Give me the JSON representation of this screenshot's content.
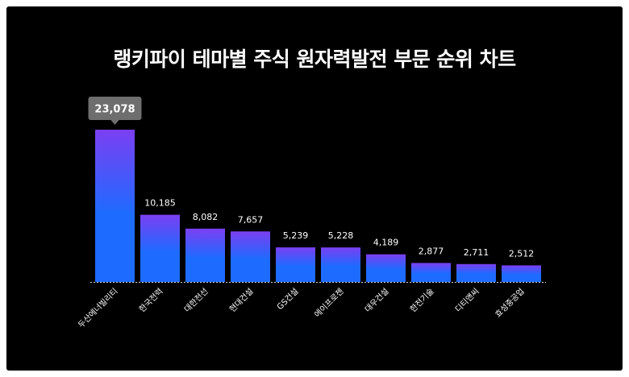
{
  "chart_data": {
    "type": "bar",
    "title": "랭키파이 테마별 주식 원자력발전 부문 순위 차트",
    "categories": [
      "두산에너빌리티",
      "한국전력",
      "대한전선",
      "현대건설",
      "GS건설",
      "에이프로젠",
      "대우건설",
      "한전기술",
      "디티앤씨",
      "효성중공업"
    ],
    "values": [
      23078,
      10185,
      8082,
      7657,
      5239,
      5228,
      4189,
      2877,
      2711,
      2512
    ],
    "value_labels": [
      "23,078",
      "10,185",
      "8,082",
      "7,657",
      "5,239",
      "5,228",
      "4,189",
      "2,877",
      "2,711",
      "2,512"
    ],
    "ylim": [
      0,
      23078
    ],
    "grid": false,
    "highlight_index": 0,
    "colors": {
      "bar_top": "#7b3ff2",
      "bar_bottom": "#1e6bff",
      "background": "#000000",
      "badge": "#6e6e6e",
      "text": "#ffffff",
      "baseline": "#cfd6e6"
    }
  }
}
